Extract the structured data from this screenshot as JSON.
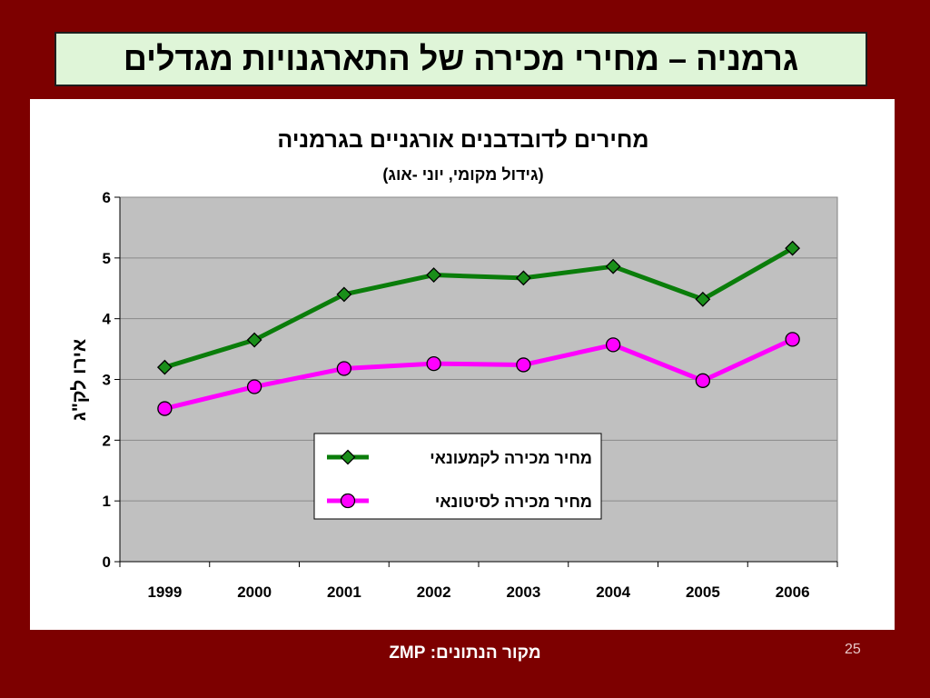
{
  "slide": {
    "title": "גרמניה – מחירי מכירה של התארגנויות מגדלים",
    "source": "מקור הנתונים: ZMP",
    "page_number": "25"
  },
  "chart_data": {
    "type": "line",
    "title": "מחירים לדובדבנים אורגניים בגרמניה",
    "subtitle": "(גידול מקומי, יוני -אוג)",
    "ylabel": "אירו לק\"ג",
    "xlabel": "",
    "categories": [
      "1999",
      "2000",
      "2001",
      "2002",
      "2003",
      "2004",
      "2005",
      "2006"
    ],
    "ylim": [
      0,
      6
    ],
    "yticks": [
      "0",
      "1",
      "2",
      "3",
      "4",
      "5",
      "6"
    ],
    "grid": true,
    "legend_position": "center-bottom",
    "series": [
      {
        "name": "מחיר מכירה לקמעונאי",
        "values": [
          3.2,
          3.65,
          4.4,
          4.72,
          4.67,
          4.86,
          4.32,
          5.16
        ],
        "color": "#0a7d0a",
        "marker": "diamond",
        "marker_color": "#1a8f1a"
      },
      {
        "name": "מחיר מכירה לסיטונאי",
        "values": [
          2.52,
          2.88,
          3.18,
          3.26,
          3.24,
          3.57,
          2.98,
          3.66
        ],
        "color": "#ff00ff",
        "marker": "circle",
        "marker_color": "#ff00ff"
      }
    ]
  }
}
